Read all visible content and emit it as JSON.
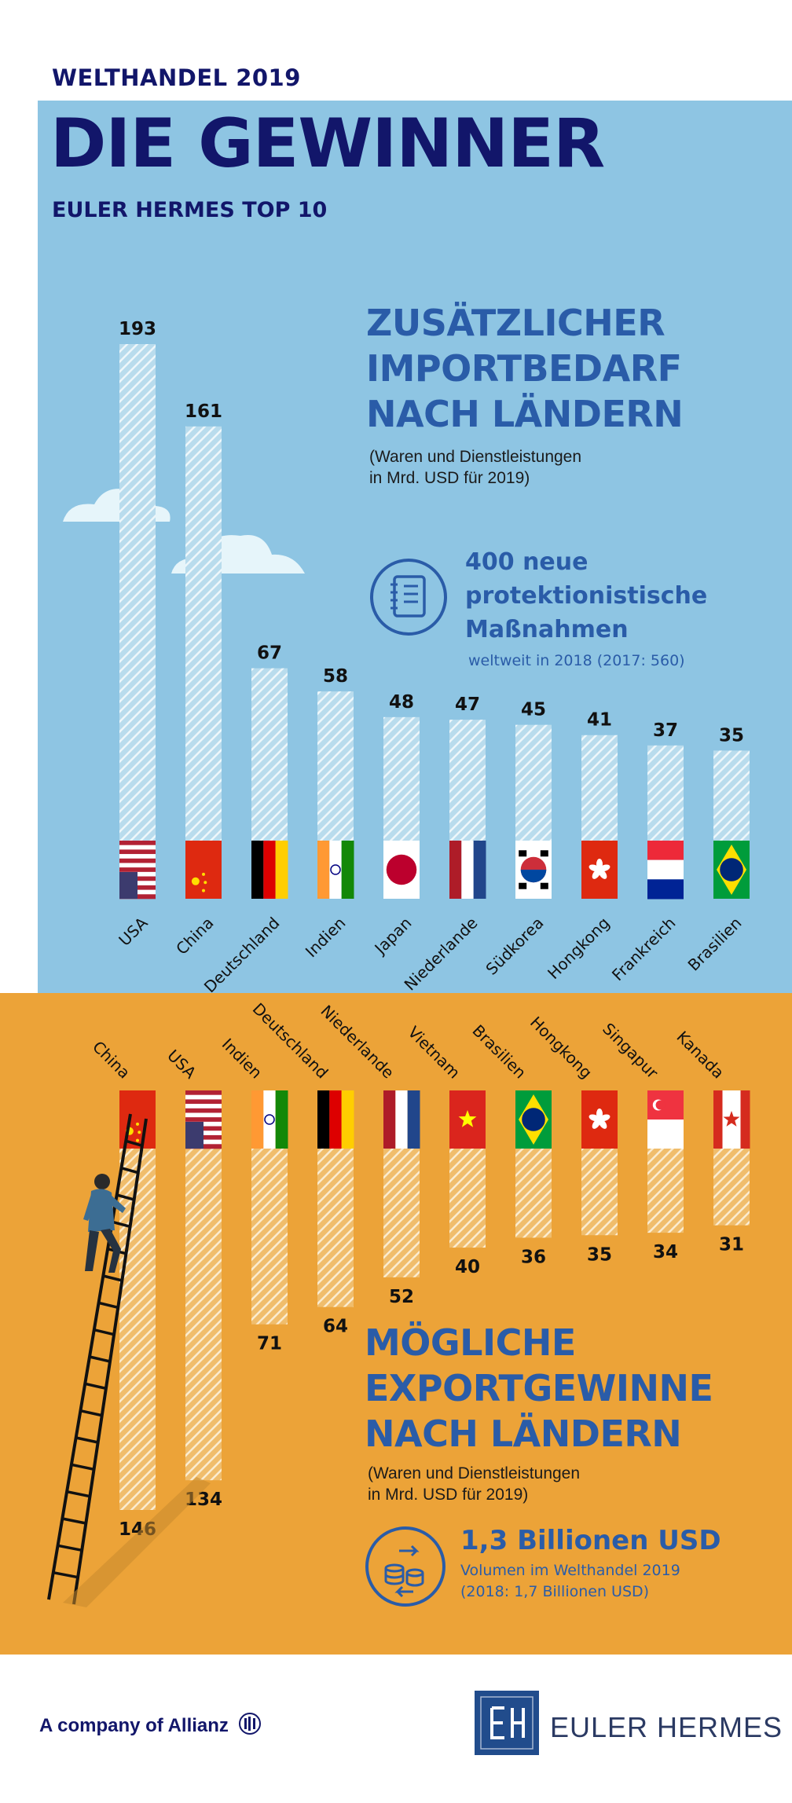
{
  "header": {
    "kicker": "WELTHANDEL 2019",
    "title": "DIE GEWINNER",
    "subtitle": "EULER HERMES TOP 10"
  },
  "import_section": {
    "title_lines": [
      "ZUSÄTZLICHER",
      "IMPORTBEDARF",
      "NACH LÄNDERN"
    ],
    "note_lines": [
      "(Waren und Dienstleistungen",
      "in Mrd. USD für 2019)"
    ],
    "callout": {
      "lines": [
        "400 neue",
        "protektionistische",
        "Maßnahmen"
      ],
      "sub": "weltweit in 2018 (2017: 560)",
      "icon": "notebook-icon"
    }
  },
  "export_section": {
    "title_lines": [
      "MÖGLICHE",
      "EXPORTGEWINNE",
      "NACH LÄNDERN"
    ],
    "note_lines": [
      "(Waren und Dienstleistungen",
      "in Mrd. USD für 2019)"
    ],
    "callout": {
      "headline": "1,3 Billionen USD",
      "lines": [
        "Volumen im Welthandel 2019",
        "(2018: 1,7 Billionen USD)"
      ],
      "icon": "coins-exchange-icon"
    }
  },
  "footer": {
    "left_text": "A company of Allianz",
    "brand": "EULER HERMES",
    "logo_text": "EH"
  },
  "colors": {
    "top_background": "#8ec5e3",
    "bottom_background": "#eca338",
    "navy": "#12166a",
    "accent_blue": "#2a5ca8"
  },
  "chart_data": [
    {
      "type": "bar",
      "title": "ZUSÄTZLICHER IMPORTBEDARF NACH LÄNDERN",
      "categories": [
        "USA",
        "China",
        "Deutschland",
        "Indien",
        "Japan",
        "Niederlande",
        "Südkorea",
        "Hongkong",
        "Frankreich",
        "Brasilien"
      ],
      "values": [
        193,
        161,
        67,
        58,
        48,
        47,
        45,
        41,
        37,
        35
      ],
      "unit": "Mrd. USD",
      "orientation": "vertical-up"
    },
    {
      "type": "bar",
      "title": "MÖGLICHE EXPORTGEWINNE NACH LÄNDERN",
      "categories": [
        "China",
        "USA",
        "Indien",
        "Deutschland",
        "Niederlande",
        "Vietnam",
        "Brasilien",
        "Hongkong",
        "Singapur",
        "Kanada"
      ],
      "values": [
        146,
        134,
        71,
        64,
        52,
        40,
        36,
        35,
        34,
        31
      ],
      "unit": "Mrd. USD",
      "orientation": "vertical-down"
    }
  ]
}
